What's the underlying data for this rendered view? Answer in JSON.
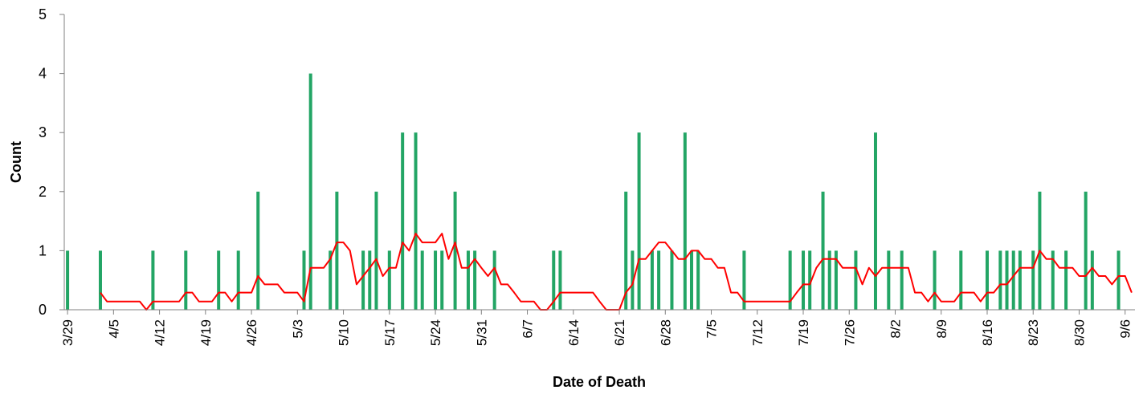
{
  "chart_data": {
    "type": "bar",
    "title": "",
    "xlabel": "Date of Death",
    "ylabel": "Count",
    "ylim": [
      0,
      5
    ],
    "yticks": [
      0,
      1,
      2,
      3,
      4,
      5
    ],
    "xlim": [
      "3/29",
      "9/7"
    ],
    "xticks": [
      "3/29",
      "4/5",
      "4/12",
      "4/19",
      "4/26",
      "5/3",
      "5/10",
      "5/17",
      "5/24",
      "5/31",
      "6/7",
      "6/14",
      "6/21",
      "6/28",
      "7/5",
      "7/12",
      "7/19",
      "7/26",
      "8/2",
      "8/9",
      "8/16",
      "8/23",
      "8/30",
      "9/6"
    ],
    "grid": false,
    "legend": "none",
    "colors": {
      "bar": "#23a565",
      "line": "#ff0000",
      "axis": "#808080"
    },
    "series": [
      {
        "type": "bar",
        "points": [
          [
            "3/29",
            1
          ],
          [
            "4/3",
            1
          ],
          [
            "4/11",
            1
          ],
          [
            "4/16",
            1
          ],
          [
            "4/21",
            1
          ],
          [
            "4/24",
            1
          ],
          [
            "4/27",
            2
          ],
          [
            "5/4",
            1
          ],
          [
            "5/5",
            4
          ],
          [
            "5/8",
            1
          ],
          [
            "5/9",
            2
          ],
          [
            "5/13",
            1
          ],
          [
            "5/14",
            1
          ],
          [
            "5/15",
            2
          ],
          [
            "5/17",
            1
          ],
          [
            "5/19",
            3
          ],
          [
            "5/21",
            3
          ],
          [
            "5/22",
            1
          ],
          [
            "5/24",
            1
          ],
          [
            "5/25",
            1
          ],
          [
            "5/27",
            2
          ],
          [
            "5/29",
            1
          ],
          [
            "5/30",
            1
          ],
          [
            "6/2",
            1
          ],
          [
            "6/11",
            1
          ],
          [
            "6/12",
            1
          ],
          [
            "6/22",
            2
          ],
          [
            "6/23",
            1
          ],
          [
            "6/24",
            3
          ],
          [
            "6/26",
            1
          ],
          [
            "6/27",
            1
          ],
          [
            "6/29",
            1
          ],
          [
            "7/1",
            3
          ],
          [
            "7/2",
            1
          ],
          [
            "7/3",
            1
          ],
          [
            "7/10",
            1
          ],
          [
            "7/17",
            1
          ],
          [
            "7/19",
            1
          ],
          [
            "7/20",
            1
          ],
          [
            "7/22",
            2
          ],
          [
            "7/23",
            1
          ],
          [
            "7/24",
            1
          ],
          [
            "7/27",
            1
          ],
          [
            "7/30",
            3
          ],
          [
            "8/1",
            1
          ],
          [
            "8/3",
            1
          ],
          [
            "8/8",
            1
          ],
          [
            "8/12",
            1
          ],
          [
            "8/16",
            1
          ],
          [
            "8/18",
            1
          ],
          [
            "8/19",
            1
          ],
          [
            "8/20",
            1
          ],
          [
            "8/21",
            1
          ],
          [
            "8/23",
            1
          ],
          [
            "8/24",
            2
          ],
          [
            "8/26",
            1
          ],
          [
            "8/28",
            1
          ],
          [
            "8/31",
            2
          ],
          [
            "9/1",
            1
          ],
          [
            "9/5",
            1
          ]
        ]
      },
      {
        "type": "line",
        "points": [
          [
            "4/3",
            0.29
          ],
          [
            "4/4",
            0.14
          ],
          [
            "4/5",
            0.14
          ],
          [
            "4/6",
            0.14
          ],
          [
            "4/7",
            0.14
          ],
          [
            "4/8",
            0.14
          ],
          [
            "4/9",
            0.14
          ],
          [
            "4/10",
            0
          ],
          [
            "4/11",
            0.14
          ],
          [
            "4/12",
            0.14
          ],
          [
            "4/13",
            0.14
          ],
          [
            "4/14",
            0.14
          ],
          [
            "4/15",
            0.14
          ],
          [
            "4/16",
            0.29
          ],
          [
            "4/17",
            0.29
          ],
          [
            "4/18",
            0.14
          ],
          [
            "4/19",
            0.14
          ],
          [
            "4/20",
            0.14
          ],
          [
            "4/21",
            0.29
          ],
          [
            "4/22",
            0.29
          ],
          [
            "4/23",
            0.14
          ],
          [
            "4/24",
            0.29
          ],
          [
            "4/25",
            0.29
          ],
          [
            "4/26",
            0.29
          ],
          [
            "4/27",
            0.57
          ],
          [
            "4/28",
            0.43
          ],
          [
            "4/29",
            0.43
          ],
          [
            "4/30",
            0.43
          ],
          [
            "5/1",
            0.29
          ],
          [
            "5/2",
            0.29
          ],
          [
            "5/3",
            0.29
          ],
          [
            "5/4",
            0.14
          ],
          [
            "5/5",
            0.71
          ],
          [
            "5/6",
            0.71
          ],
          [
            "5/7",
            0.71
          ],
          [
            "5/8",
            0.86
          ],
          [
            "5/9",
            1.14
          ],
          [
            "5/10",
            1.14
          ],
          [
            "5/11",
            1.0
          ],
          [
            "5/12",
            0.43
          ],
          [
            "5/13",
            0.57
          ],
          [
            "5/14",
            0.71
          ],
          [
            "5/15",
            0.86
          ],
          [
            "5/16",
            0.57
          ],
          [
            "5/17",
            0.71
          ],
          [
            "5/18",
            0.71
          ],
          [
            "5/19",
            1.14
          ],
          [
            "5/20",
            1.0
          ],
          [
            "5/21",
            1.29
          ],
          [
            "5/22",
            1.14
          ],
          [
            "5/23",
            1.14
          ],
          [
            "5/24",
            1.14
          ],
          [
            "5/25",
            1.29
          ],
          [
            "5/26",
            0.86
          ],
          [
            "5/27",
            1.14
          ],
          [
            "5/28",
            0.71
          ],
          [
            "5/29",
            0.71
          ],
          [
            "5/30",
            0.86
          ],
          [
            "5/31",
            0.71
          ],
          [
            "6/1",
            0.57
          ],
          [
            "6/2",
            0.71
          ],
          [
            "6/3",
            0.43
          ],
          [
            "6/4",
            0.43
          ],
          [
            "6/5",
            0.29
          ],
          [
            "6/6",
            0.14
          ],
          [
            "6/7",
            0.14
          ],
          [
            "6/8",
            0.14
          ],
          [
            "6/9",
            0
          ],
          [
            "6/10",
            0
          ],
          [
            "6/11",
            0.14
          ],
          [
            "6/12",
            0.29
          ],
          [
            "6/13",
            0.29
          ],
          [
            "6/14",
            0.29
          ],
          [
            "6/15",
            0.29
          ],
          [
            "6/16",
            0.29
          ],
          [
            "6/17",
            0.29
          ],
          [
            "6/18",
            0.14
          ],
          [
            "6/19",
            0
          ],
          [
            "6/20",
            0
          ],
          [
            "6/21",
            0
          ],
          [
            "6/22",
            0.29
          ],
          [
            "6/23",
            0.43
          ],
          [
            "6/24",
            0.86
          ],
          [
            "6/25",
            0.86
          ],
          [
            "6/26",
            1.0
          ],
          [
            "6/27",
            1.14
          ],
          [
            "6/28",
            1.14
          ],
          [
            "6/29",
            1.0
          ],
          [
            "6/30",
            0.86
          ],
          [
            "7/1",
            0.86
          ],
          [
            "7/2",
            1.0
          ],
          [
            "7/3",
            1.0
          ],
          [
            "7/4",
            0.86
          ],
          [
            "7/5",
            0.86
          ],
          [
            "7/6",
            0.71
          ],
          [
            "7/7",
            0.71
          ],
          [
            "7/8",
            0.29
          ],
          [
            "7/9",
            0.29
          ],
          [
            "7/10",
            0.14
          ],
          [
            "7/11",
            0.14
          ],
          [
            "7/12",
            0.14
          ],
          [
            "7/13",
            0.14
          ],
          [
            "7/14",
            0.14
          ],
          [
            "7/15",
            0.14
          ],
          [
            "7/16",
            0.14
          ],
          [
            "7/17",
            0.14
          ],
          [
            "7/18",
            0.29
          ],
          [
            "7/19",
            0.43
          ],
          [
            "7/20",
            0.43
          ],
          [
            "7/21",
            0.71
          ],
          [
            "7/22",
            0.86
          ],
          [
            "7/23",
            0.86
          ],
          [
            "7/24",
            0.86
          ],
          [
            "7/25",
            0.71
          ],
          [
            "7/26",
            0.71
          ],
          [
            "7/27",
            0.71
          ],
          [
            "7/28",
            0.43
          ],
          [
            "7/29",
            0.71
          ],
          [
            "7/30",
            0.57
          ],
          [
            "7/31",
            0.71
          ],
          [
            "8/1",
            0.71
          ],
          [
            "8/2",
            0.71
          ],
          [
            "8/3",
            0.71
          ],
          [
            "8/4",
            0.71
          ],
          [
            "8/5",
            0.29
          ],
          [
            "8/6",
            0.29
          ],
          [
            "8/7",
            0.14
          ],
          [
            "8/8",
            0.29
          ],
          [
            "8/9",
            0.14
          ],
          [
            "8/10",
            0.14
          ],
          [
            "8/11",
            0.14
          ],
          [
            "8/12",
            0.29
          ],
          [
            "8/13",
            0.29
          ],
          [
            "8/14",
            0.29
          ],
          [
            "8/15",
            0.14
          ],
          [
            "8/16",
            0.29
          ],
          [
            "8/17",
            0.29
          ],
          [
            "8/18",
            0.43
          ],
          [
            "8/19",
            0.43
          ],
          [
            "8/20",
            0.57
          ],
          [
            "8/21",
            0.71
          ],
          [
            "8/22",
            0.71
          ],
          [
            "8/23",
            0.71
          ],
          [
            "8/24",
            1.0
          ],
          [
            "8/25",
            0.86
          ],
          [
            "8/26",
            0.86
          ],
          [
            "8/27",
            0.71
          ],
          [
            "8/28",
            0.71
          ],
          [
            "8/29",
            0.71
          ],
          [
            "8/30",
            0.57
          ],
          [
            "8/31",
            0.57
          ],
          [
            "9/1",
            0.71
          ],
          [
            "9/2",
            0.57
          ],
          [
            "9/3",
            0.57
          ],
          [
            "9/4",
            0.43
          ],
          [
            "9/5",
            0.57
          ],
          [
            "9/6",
            0.57
          ],
          [
            "9/7",
            0.29
          ]
        ]
      }
    ]
  }
}
